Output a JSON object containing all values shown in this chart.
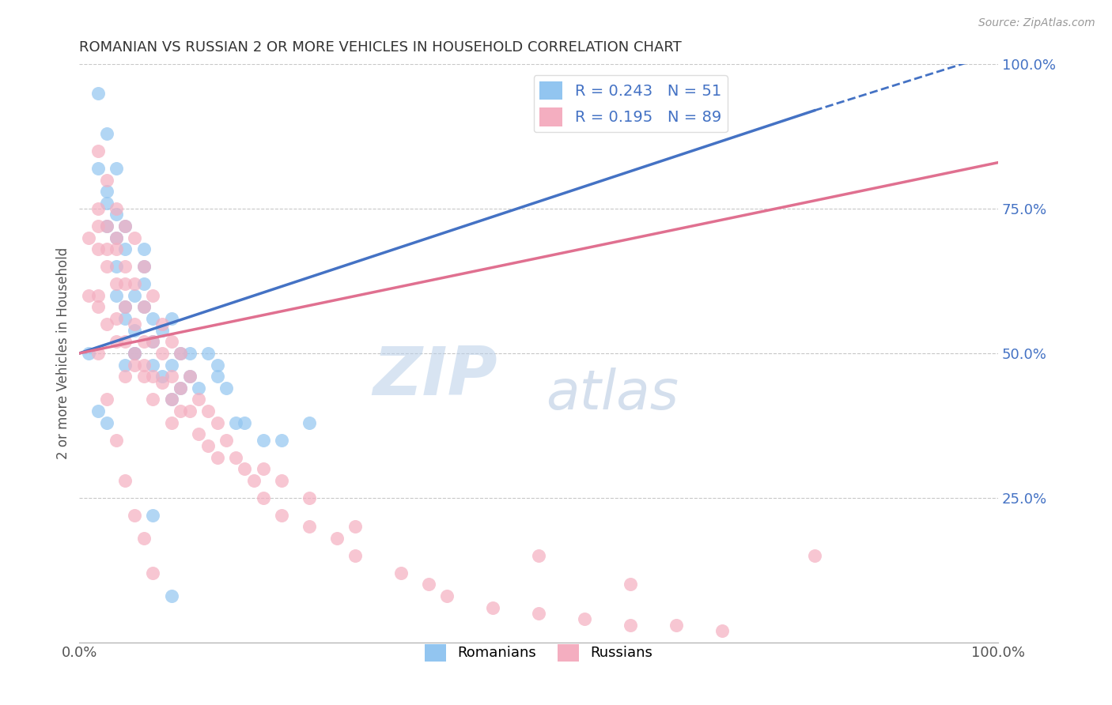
{
  "title": "ROMANIAN VS RUSSIAN 2 OR MORE VEHICLES IN HOUSEHOLD CORRELATION CHART",
  "source": "Source: ZipAtlas.com",
  "ylabel": "2 or more Vehicles in Household",
  "xlim": [
    0.0,
    1.0
  ],
  "ylim": [
    0.0,
    1.0
  ],
  "grid_color": "#c8c8c8",
  "background_color": "#ffffff",
  "romanian_color": "#92c5f0",
  "russian_color": "#f4aec0",
  "romanian_line_color": "#4472c4",
  "russian_line_color": "#e07090",
  "legend_R_romanian": "0.243",
  "legend_N_romanian": "51",
  "legend_R_russian": "0.195",
  "legend_N_russian": "89",
  "legend_text_color": "#4472c4",
  "romanian_x": [
    0.02,
    0.02,
    0.03,
    0.03,
    0.03,
    0.03,
    0.04,
    0.04,
    0.04,
    0.04,
    0.04,
    0.05,
    0.05,
    0.05,
    0.05,
    0.05,
    0.06,
    0.06,
    0.06,
    0.07,
    0.07,
    0.07,
    0.07,
    0.08,
    0.08,
    0.08,
    0.09,
    0.09,
    0.1,
    0.1,
    0.1,
    0.11,
    0.11,
    0.12,
    0.12,
    0.13,
    0.14,
    0.15,
    0.15,
    0.16,
    0.17,
    0.18,
    0.2,
    0.22,
    0.25,
    0.01,
    0.02,
    0.03,
    0.06,
    0.08,
    0.1
  ],
  "romanian_y": [
    0.95,
    0.82,
    0.76,
    0.78,
    0.72,
    0.88,
    0.7,
    0.65,
    0.82,
    0.74,
    0.6,
    0.68,
    0.72,
    0.58,
    0.48,
    0.56,
    0.6,
    0.5,
    0.54,
    0.65,
    0.58,
    0.62,
    0.68,
    0.56,
    0.48,
    0.52,
    0.54,
    0.46,
    0.48,
    0.42,
    0.56,
    0.44,
    0.5,
    0.46,
    0.5,
    0.44,
    0.5,
    0.48,
    0.46,
    0.44,
    0.38,
    0.38,
    0.35,
    0.35,
    0.38,
    0.5,
    0.4,
    0.38,
    0.5,
    0.22,
    0.08
  ],
  "russian_x": [
    0.01,
    0.01,
    0.02,
    0.02,
    0.02,
    0.02,
    0.02,
    0.02,
    0.03,
    0.03,
    0.03,
    0.03,
    0.03,
    0.04,
    0.04,
    0.04,
    0.04,
    0.04,
    0.04,
    0.05,
    0.05,
    0.05,
    0.05,
    0.05,
    0.05,
    0.06,
    0.06,
    0.06,
    0.06,
    0.06,
    0.07,
    0.07,
    0.07,
    0.07,
    0.07,
    0.08,
    0.08,
    0.08,
    0.08,
    0.09,
    0.09,
    0.09,
    0.1,
    0.1,
    0.1,
    0.1,
    0.11,
    0.11,
    0.11,
    0.12,
    0.12,
    0.13,
    0.13,
    0.14,
    0.14,
    0.15,
    0.15,
    0.16,
    0.17,
    0.18,
    0.19,
    0.2,
    0.2,
    0.22,
    0.22,
    0.25,
    0.25,
    0.28,
    0.3,
    0.3,
    0.35,
    0.38,
    0.4,
    0.45,
    0.5,
    0.55,
    0.6,
    0.65,
    0.7,
    0.8,
    0.02,
    0.03,
    0.04,
    0.05,
    0.06,
    0.07,
    0.08,
    0.5,
    0.6
  ],
  "russian_y": [
    0.7,
    0.6,
    0.85,
    0.72,
    0.68,
    0.75,
    0.6,
    0.58,
    0.8,
    0.72,
    0.65,
    0.55,
    0.68,
    0.75,
    0.68,
    0.62,
    0.56,
    0.7,
    0.52,
    0.72,
    0.65,
    0.58,
    0.62,
    0.52,
    0.46,
    0.7,
    0.62,
    0.55,
    0.5,
    0.48,
    0.65,
    0.58,
    0.52,
    0.46,
    0.48,
    0.6,
    0.52,
    0.46,
    0.42,
    0.55,
    0.5,
    0.45,
    0.52,
    0.46,
    0.42,
    0.38,
    0.5,
    0.44,
    0.4,
    0.46,
    0.4,
    0.42,
    0.36,
    0.4,
    0.34,
    0.38,
    0.32,
    0.35,
    0.32,
    0.3,
    0.28,
    0.25,
    0.3,
    0.22,
    0.28,
    0.2,
    0.25,
    0.18,
    0.15,
    0.2,
    0.12,
    0.1,
    0.08,
    0.06,
    0.05,
    0.04,
    0.03,
    0.03,
    0.02,
    0.15,
    0.5,
    0.42,
    0.35,
    0.28,
    0.22,
    0.18,
    0.12,
    0.15,
    0.1
  ],
  "rom_line_x0": 0.0,
  "rom_line_y0": 0.5,
  "rom_line_x1": 0.8,
  "rom_line_y1": 0.92,
  "rom_line_dash_x0": 0.8,
  "rom_line_dash_y0": 0.92,
  "rom_line_dash_x1": 1.0,
  "rom_line_dash_y1": 1.02,
  "russ_line_x0": 0.0,
  "russ_line_y0": 0.5,
  "russ_line_x1": 1.0,
  "russ_line_y1": 0.83
}
